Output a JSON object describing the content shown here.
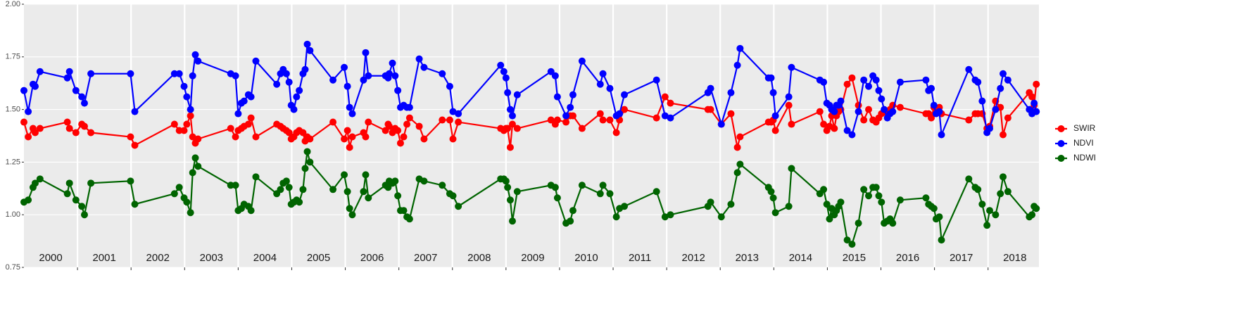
{
  "chart_data": {
    "type": "line",
    "x": [
      2000.0,
      2000.08,
      2000.17,
      2000.21,
      2000.3,
      2000.81,
      2000.85,
      2000.97,
      2001.08,
      2001.13,
      2001.25,
      2001.99,
      2002.07,
      2002.81,
      2002.9,
      2002.99,
      2003.04,
      2003.11,
      2003.15,
      2003.2,
      2003.25,
      2003.86,
      2003.95,
      2004.0,
      2004.06,
      2004.11,
      2004.19,
      2004.24,
      2004.33,
      2004.72,
      2004.79,
      2004.84,
      2004.9,
      2004.95,
      2004.99,
      2005.04,
      2005.09,
      2005.14,
      2005.21,
      2005.25,
      2005.29,
      2005.34,
      2005.77,
      2005.98,
      2006.04,
      2006.08,
      2006.13,
      2006.34,
      2006.38,
      2006.43,
      2006.75,
      2006.8,
      2006.82,
      2006.88,
      2006.93,
      2006.98,
      2007.03,
      2007.09,
      2007.15,
      2007.2,
      2007.38,
      2007.47,
      2007.81,
      2007.95,
      2008.01,
      2008.11,
      2008.9,
      2008.96,
      2009.0,
      2009.03,
      2009.08,
      2009.12,
      2009.21,
      2009.84,
      2009.92,
      2009.96,
      2010.12,
      2010.2,
      2010.25,
      2010.42,
      2010.76,
      2010.81,
      2010.94,
      2011.06,
      2011.12,
      2011.21,
      2011.81,
      2011.97,
      2012.07,
      2012.77,
      2012.82,
      2013.02,
      2013.2,
      2013.32,
      2013.37,
      2013.9,
      2013.95,
      2013.99,
      2014.03,
      2014.28,
      2014.33,
      2014.86,
      2014.93,
      2014.99,
      2015.04,
      2015.08,
      2015.13,
      2015.17,
      2015.21,
      2015.25,
      2015.37,
      2015.46,
      2015.58,
      2015.68,
      2015.77,
      2015.85,
      2015.91,
      2015.96,
      2016.01,
      2016.06,
      2016.12,
      2016.17,
      2016.22,
      2016.36,
      2016.84,
      2016.89,
      2016.94,
      2016.99,
      2017.03,
      2017.09,
      2017.13,
      2017.64,
      2017.76,
      2017.81,
      2017.89,
      2017.98,
      2018.03,
      2018.14,
      2018.23,
      2018.28,
      2018.37,
      2018.77,
      2018.82,
      2018.86,
      2018.9
    ],
    "series": [
      {
        "name": "SWIR",
        "color": "#ff0000",
        "values": [
          1.44,
          1.37,
          1.41,
          1.39,
          1.41,
          1.44,
          1.41,
          1.39,
          1.43,
          1.42,
          1.39,
          1.37,
          1.33,
          1.43,
          1.4,
          1.4,
          1.43,
          1.47,
          1.37,
          1.34,
          1.36,
          1.41,
          1.37,
          1.4,
          1.41,
          1.42,
          1.43,
          1.46,
          1.37,
          1.43,
          1.42,
          1.41,
          1.4,
          1.39,
          1.36,
          1.37,
          1.39,
          1.4,
          1.39,
          1.35,
          1.37,
          1.36,
          1.44,
          1.36,
          1.4,
          1.32,
          1.37,
          1.39,
          1.37,
          1.44,
          1.4,
          1.43,
          1.42,
          1.39,
          1.41,
          1.4,
          1.34,
          1.37,
          1.43,
          1.46,
          1.42,
          1.36,
          1.45,
          1.45,
          1.36,
          1.44,
          1.41,
          1.4,
          1.41,
          1.41,
          1.32,
          1.43,
          1.41,
          1.45,
          1.43,
          1.45,
          1.44,
          1.47,
          1.47,
          1.41,
          1.48,
          1.45,
          1.45,
          1.39,
          1.45,
          1.5,
          1.46,
          1.56,
          1.53,
          1.5,
          1.5,
          1.43,
          1.48,
          1.32,
          1.37,
          1.44,
          1.44,
          1.45,
          1.4,
          1.52,
          1.43,
          1.49,
          1.43,
          1.4,
          1.42,
          1.47,
          1.41,
          1.47,
          1.49,
          1.5,
          1.62,
          1.65,
          1.52,
          1.45,
          1.5,
          1.45,
          1.44,
          1.46,
          1.48,
          1.49,
          1.48,
          1.5,
          1.52,
          1.51,
          1.48,
          1.48,
          1.46,
          1.51,
          1.5,
          1.51,
          1.48,
          1.45,
          1.48,
          1.48,
          1.48,
          1.41,
          1.42,
          1.54,
          1.51,
          1.38,
          1.46,
          1.58,
          1.56,
          1.52,
          1.62
        ]
      },
      {
        "name": "NDVI",
        "color": "#0000ff",
        "values": [
          1.59,
          1.49,
          1.62,
          1.61,
          1.68,
          1.65,
          1.68,
          1.59,
          1.56,
          1.53,
          1.67,
          1.67,
          1.49,
          1.67,
          1.67,
          1.61,
          1.56,
          1.5,
          1.66,
          1.76,
          1.73,
          1.67,
          1.66,
          1.48,
          1.53,
          1.54,
          1.57,
          1.56,
          1.73,
          1.62,
          1.67,
          1.69,
          1.67,
          1.63,
          1.52,
          1.5,
          1.56,
          1.59,
          1.67,
          1.69,
          1.81,
          1.78,
          1.64,
          1.7,
          1.61,
          1.51,
          1.48,
          1.64,
          1.77,
          1.66,
          1.66,
          1.65,
          1.67,
          1.72,
          1.66,
          1.59,
          1.51,
          1.52,
          1.51,
          1.51,
          1.74,
          1.7,
          1.67,
          1.61,
          1.49,
          1.48,
          1.71,
          1.68,
          1.65,
          1.58,
          1.5,
          1.47,
          1.57,
          1.68,
          1.66,
          1.56,
          1.47,
          1.51,
          1.57,
          1.73,
          1.62,
          1.67,
          1.6,
          1.47,
          1.48,
          1.57,
          1.64,
          1.47,
          1.46,
          1.58,
          1.6,
          1.43,
          1.58,
          1.71,
          1.79,
          1.65,
          1.65,
          1.58,
          1.47,
          1.56,
          1.7,
          1.64,
          1.63,
          1.53,
          1.52,
          1.5,
          1.49,
          1.52,
          1.52,
          1.54,
          1.4,
          1.38,
          1.49,
          1.64,
          1.61,
          1.66,
          1.64,
          1.59,
          1.55,
          1.5,
          1.46,
          1.48,
          1.49,
          1.63,
          1.64,
          1.59,
          1.6,
          1.52,
          1.48,
          1.49,
          1.38,
          1.69,
          1.64,
          1.63,
          1.54,
          1.39,
          1.41,
          1.5,
          1.6,
          1.67,
          1.64,
          1.5,
          1.48,
          1.53,
          1.49
        ]
      },
      {
        "name": "NDWI",
        "color": "#006400",
        "values": [
          1.06,
          1.07,
          1.13,
          1.15,
          1.17,
          1.1,
          1.15,
          1.07,
          1.04,
          1.0,
          1.15,
          1.16,
          1.05,
          1.1,
          1.13,
          1.08,
          1.06,
          1.01,
          1.2,
          1.27,
          1.23,
          1.14,
          1.14,
          1.02,
          1.03,
          1.05,
          1.04,
          1.02,
          1.18,
          1.1,
          1.12,
          1.15,
          1.16,
          1.13,
          1.05,
          1.06,
          1.07,
          1.06,
          1.12,
          1.22,
          1.3,
          1.25,
          1.12,
          1.19,
          1.11,
          1.03,
          1.0,
          1.11,
          1.19,
          1.08,
          1.14,
          1.13,
          1.16,
          1.15,
          1.16,
          1.09,
          1.02,
          1.02,
          0.99,
          0.98,
          1.17,
          1.16,
          1.14,
          1.1,
          1.09,
          1.04,
          1.17,
          1.17,
          1.16,
          1.13,
          1.07,
          0.97,
          1.11,
          1.14,
          1.13,
          1.08,
          0.96,
          0.97,
          1.02,
          1.14,
          1.1,
          1.14,
          1.1,
          0.99,
          1.03,
          1.04,
          1.11,
          0.99,
          1.0,
          1.04,
          1.06,
          0.99,
          1.05,
          1.2,
          1.24,
          1.13,
          1.11,
          1.08,
          1.01,
          1.04,
          1.22,
          1.1,
          1.12,
          1.05,
          0.98,
          1.03,
          1.0,
          1.02,
          1.04,
          1.06,
          0.88,
          0.86,
          0.96,
          1.12,
          1.09,
          1.13,
          1.13,
          1.09,
          1.06,
          0.96,
          0.97,
          0.98,
          0.96,
          1.07,
          1.08,
          1.05,
          1.04,
          1.03,
          0.98,
          0.99,
          0.88,
          1.17,
          1.13,
          1.12,
          1.05,
          0.95,
          1.02,
          1.0,
          1.1,
          1.18,
          1.11,
          0.99,
          1.0,
          1.04,
          1.03
        ]
      }
    ],
    "xlim": [
      2000,
      2018.95
    ],
    "xticks": [
      2001,
      2002,
      2003,
      2004,
      2005,
      2006,
      2007,
      2008,
      2009,
      2010,
      2011,
      2012,
      2013,
      2014,
      2015,
      2016,
      2017,
      2018
    ],
    "ylim": [
      0.75,
      2.0
    ],
    "yticks": [
      0.75,
      {
        "value": 1.0,
        "label": "1.00"
      },
      1.25,
      {
        "value": 1.5,
        "label": "1.50"
      },
      1.75,
      {
        "value": 2.0,
        "label": "2.00"
      }
    ],
    "annotations": [
      {
        "text": "2000",
        "x": 2000.5
      },
      {
        "text": "2001",
        "x": 2001.5
      },
      {
        "text": "2002",
        "x": 2002.5
      },
      {
        "text": "2003",
        "x": 2003.5
      },
      {
        "text": "2004",
        "x": 2004.5
      },
      {
        "text": "2005",
        "x": 2005.5
      },
      {
        "text": "2006",
        "x": 2006.5
      },
      {
        "text": "2007",
        "x": 2007.5
      },
      {
        "text": "2008",
        "x": 2008.5
      },
      {
        "text": "2009",
        "x": 2009.5
      },
      {
        "text": "2010",
        "x": 2010.5
      },
      {
        "text": "2011",
        "x": 2011.5
      },
      {
        "text": "2012",
        "x": 2012.5
      },
      {
        "text": "2013",
        "x": 2013.5
      },
      {
        "text": "2014",
        "x": 2014.5
      },
      {
        "text": "2015",
        "x": 2015.5
      },
      {
        "text": "2016",
        "x": 2016.5
      },
      {
        "text": "2017",
        "x": 2017.5
      },
      {
        "text": "2018",
        "x": 2018.5
      }
    ],
    "grid": true,
    "legend": "right"
  }
}
